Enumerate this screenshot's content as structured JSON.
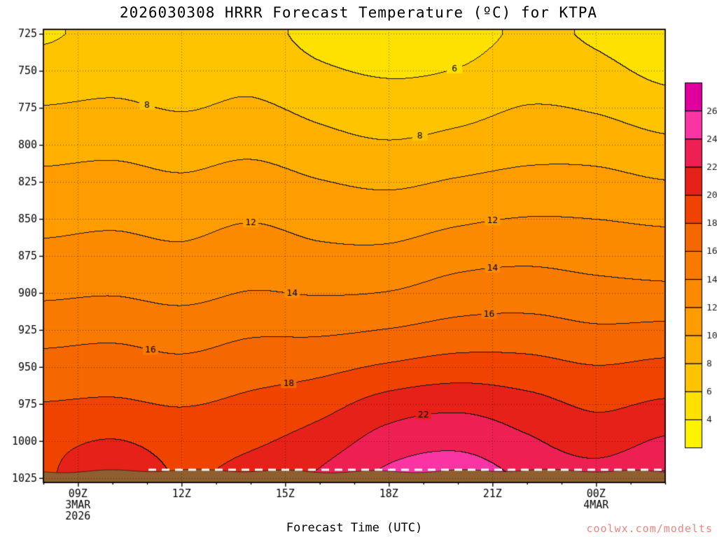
{
  "title": "2026030308 HRRR Forecast Temperature (ºC) for KTPA",
  "xlabel": "Forecast Time (UTC)",
  "watermark": "coolwx.com/modelts",
  "axes": {
    "pressure_ticks": [
      725,
      750,
      775,
      800,
      825,
      850,
      875,
      900,
      925,
      950,
      975,
      1000,
      1025
    ],
    "time_ticks": [
      {
        "hour": 9,
        "label": "09Z"
      },
      {
        "hour": 12,
        "label": "12Z"
      },
      {
        "hour": 15,
        "label": "15Z"
      },
      {
        "hour": 18,
        "label": "18Z"
      },
      {
        "hour": 21,
        "label": "21Z"
      },
      {
        "hour": 24,
        "label": "00Z"
      }
    ],
    "date_labels": [
      {
        "hour": 9,
        "lines": [
          "3MAR",
          "2026"
        ]
      },
      {
        "hour": 24,
        "lines": [
          "4MAR"
        ]
      }
    ]
  },
  "colorbar": {
    "labels": [
      4,
      6,
      8,
      10,
      12,
      14,
      16,
      18,
      20,
      22,
      24,
      26
    ],
    "colors": [
      "#FFF400",
      "#FFE100",
      "#FFC400",
      "#FFB000",
      "#FF9C00",
      "#FC8A00",
      "#F87A00",
      "#F56700",
      "#F04300",
      "#E62119",
      "#EE2053",
      "#FA34A2",
      "#E0009E"
    ]
  },
  "chart_data": {
    "type": "heatmap",
    "title": "2026030308 HRRR Forecast Temperature (ºC) for KTPA",
    "xlabel": "Forecast Time (UTC)",
    "ylabel": "",
    "time_range": [
      8,
      26
    ],
    "pressure_range": [
      722,
      1028
    ],
    "contour_interval": 2,
    "x_hours": [
      8,
      10,
      12,
      14,
      16,
      18,
      20,
      22,
      24,
      26
    ],
    "pressure_levels": [
      725,
      750,
      775,
      800,
      825,
      850,
      875,
      900,
      925,
      950,
      975,
      1000,
      1025
    ],
    "temperature_grid": [
      [
        5.8,
        6.5,
        6.2,
        6.6,
        5.4,
        4.9,
        5.2,
        6.3,
        5.7,
        4.4
      ],
      [
        6.8,
        7.3,
        7.0,
        7.4,
        6.3,
        5.8,
        6.1,
        7.1,
        6.6,
        5.5
      ],
      [
        8.1,
        8.3,
        7.9,
        8.3,
        7.5,
        6.9,
        7.3,
        8.1,
        7.8,
        6.9
      ],
      [
        9.3,
        9.5,
        9.1,
        9.5,
        8.7,
        8.2,
        8.7,
        9.3,
        9.2,
        8.5
      ],
      [
        10.5,
        10.7,
        10.3,
        10.8,
        10.1,
        9.7,
        10.2,
        10.6,
        10.6,
        10.1
      ],
      [
        11.5,
        11.7,
        11.4,
        11.9,
        11.3,
        11.1,
        11.7,
        12.1,
        12.0,
        11.7
      ],
      [
        12.5,
        12.7,
        12.4,
        13.0,
        12.5,
        12.5,
        13.3,
        13.6,
        13.3,
        13.1
      ],
      [
        13.7,
        13.9,
        13.5,
        14.1,
        13.9,
        14.1,
        14.9,
        15.1,
        14.7,
        14.5
      ],
      [
        15.3,
        15.5,
        15.1,
        15.7,
        15.7,
        16.1,
        16.7,
        16.8,
        16.3,
        16.5
      ],
      [
        16.7,
        16.9,
        16.5,
        17.1,
        17.5,
        18.3,
        18.9,
        18.7,
        18.1,
        18.5
      ],
      [
        18.1,
        18.3,
        17.9,
        18.5,
        19.3,
        20.9,
        21.5,
        20.7,
        19.7,
        20.3
      ],
      [
        19.5,
        20.1,
        19.3,
        19.7,
        20.9,
        22.9,
        23.5,
        22.3,
        21.1,
        22.3
      ],
      [
        19.8,
        21.3,
        19.9,
        20.7,
        22.3,
        24.5,
        25.1,
        23.7,
        22.9,
        24.3
      ]
    ],
    "contour_labels": [
      {
        "level": 6,
        "hour": 19.9
      },
      {
        "level": 8,
        "hour": 11.0
      },
      {
        "level": 8,
        "hour": 18.9
      },
      {
        "level": 12,
        "hour": 14.0
      },
      {
        "level": 12,
        "hour": 21.0
      },
      {
        "level": 14,
        "hour": 15.2
      },
      {
        "level": 14,
        "hour": 21.0
      },
      {
        "level": 16,
        "hour": 11.1
      },
      {
        "level": 16,
        "hour": 20.9
      },
      {
        "level": 18,
        "hour": 15.1
      },
      {
        "level": 22,
        "hour": 19.0
      }
    ],
    "ground_color": "#8F5F2F",
    "ground_top_pressure": 1020.3
  }
}
